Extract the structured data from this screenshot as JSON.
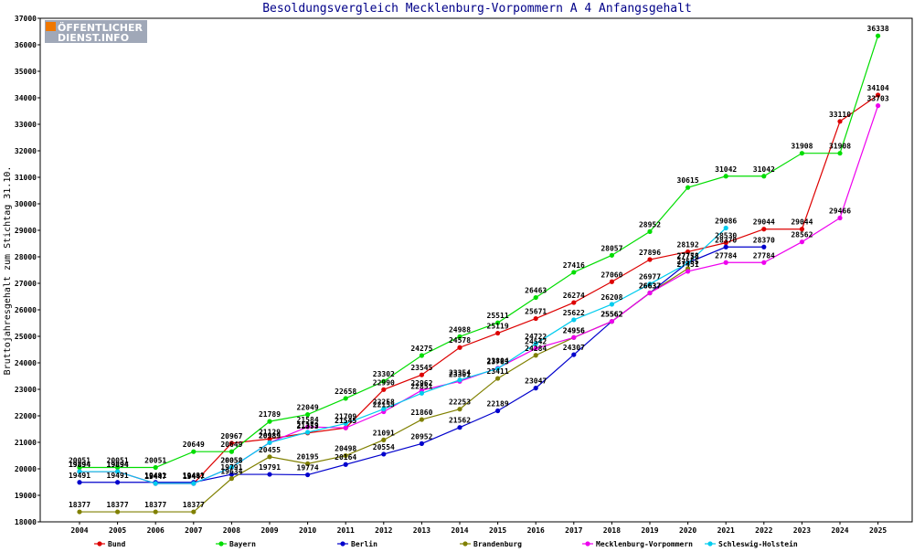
{
  "logo": {
    "line1": "ÖFFENTLICHER",
    "line2": "DIENST.INFO",
    "accent": "#f07800",
    "bg": "#a0a8b8"
  },
  "chart_data": {
    "type": "line",
    "title": "Besoldungsvergleich Mecklenburg-Vorpommern A 4 Anfangsgehalt",
    "xlabel": "",
    "ylabel": "Bruttojahresgehalt zum Stichtag 31.10.",
    "ylim": [
      18000,
      37000
    ],
    "yticks": [
      18000,
      19000,
      20000,
      21000,
      22000,
      23000,
      24000,
      25000,
      26000,
      27000,
      28000,
      29000,
      30000,
      31000,
      32000,
      33000,
      34000,
      35000,
      36000,
      37000
    ],
    "categories": [
      "2004",
      "2005",
      "2006",
      "2007",
      "2008",
      "2009",
      "2010",
      "2011",
      "2012",
      "2013",
      "2014",
      "2015",
      "2016",
      "2017",
      "2018",
      "2019",
      "2020",
      "2021",
      "2022",
      "2023",
      "2024",
      "2025"
    ],
    "legend_position": "bottom",
    "grid": false,
    "series": [
      {
        "name": "Bund",
        "color": "#dd0000",
        "values": [
          19894,
          19894,
          19447,
          19447,
          20967,
          21129,
          21353,
          21545,
          22990,
          23545,
          24578,
          25119,
          25671,
          26274,
          27060,
          27896,
          28192,
          28530,
          29044,
          29044,
          33110,
          34104
        ]
      },
      {
        "name": "Bayern",
        "color": "#00dd00",
        "values": [
          20051,
          20051,
          20051,
          20649,
          20649,
          21789,
          22049,
          22658,
          23302,
          24275,
          24988,
          25511,
          26463,
          27416,
          28057,
          28952,
          30615,
          31042,
          31042,
          31908,
          31908,
          36338
        ]
      },
      {
        "name": "Berlin",
        "color": "#0000cc",
        "values": [
          19491,
          19491,
          19491,
          19491,
          19791,
          19791,
          19774,
          20164,
          20554,
          20952,
          21562,
          22189,
          23047,
          24307,
          25562,
          26637,
          27778,
          28370,
          28370,
          null,
          null,
          null
        ]
      },
      {
        "name": "Brandenburg",
        "color": "#808000",
        "values": [
          18377,
          18377,
          18377,
          18377,
          19634,
          20455,
          20195,
          20498,
          21091,
          21860,
          22253,
          23411,
          24284,
          24956,
          25562,
          26637,
          27555,
          null,
          null,
          null,
          null,
          null
        ]
      },
      {
        "name": "Mecklenburg-Vorpommern",
        "color": "#ee00ee",
        "values": [
          19894,
          19894,
          19447,
          19447,
          20058,
          20989,
          21584,
          21545,
          22155,
          22962,
          23301,
          23804,
          24542,
          24956,
          25562,
          26637,
          27451,
          27784,
          27784,
          28562,
          29466,
          33703
        ]
      },
      {
        "name": "Schleswig-Holstein",
        "color": "#00ccee",
        "values": [
          19894,
          19894,
          19447,
          19447,
          20058,
          20989,
          21379,
          21709,
          22258,
          22851,
          23354,
          23783,
          24722,
          25622,
          26208,
          26977,
          27758,
          29086,
          null,
          null,
          null,
          null
        ]
      }
    ]
  }
}
